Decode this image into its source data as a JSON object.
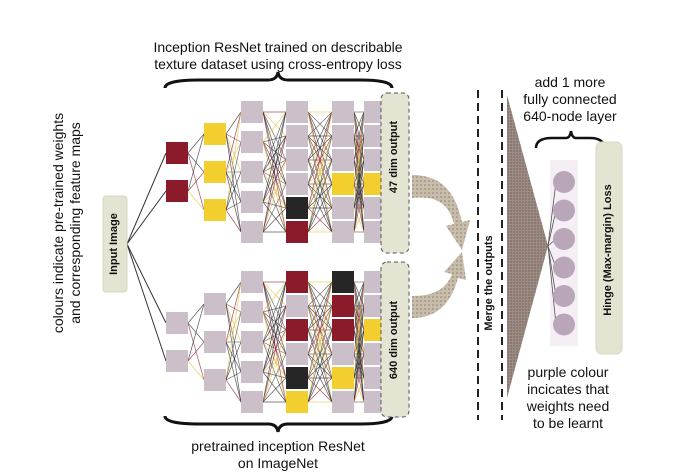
{
  "labels": {
    "top_title_line1": "Inception ResNet trained on describable",
    "top_title_line2": "texture dataset using cross-entropy loss",
    "bottom_title_line1": "pretrained inception ResNet",
    "bottom_title_line2": "on ImageNet",
    "left_note_line1": "colours indicate pre-trained weights",
    "left_note_line2": "and corresponding feature maps",
    "input": "Input Image",
    "output_top": "47 dim output",
    "output_bottom": "640 dim output",
    "merge": "Merge the outputs",
    "add_layer_line1": "add 1 more",
    "add_layer_line2": "fully connected",
    "add_layer_line3": "640-node layer",
    "loss": "Hinge (Max-margin) Loss",
    "purple_note_line1": "purple colour",
    "purple_note_line2": "incicates that",
    "purple_note_line3": "weights need",
    "purple_note_line4": "to be learnt"
  },
  "colors": {
    "maroon": "#8b1a2b",
    "yellow": "#f2cf2e",
    "grey_node": "#cbbfc9",
    "black_node": "#262626",
    "output_box": "#e3e5d2",
    "purple_node": "#b9a7b9",
    "triangle": "#8a7a74",
    "arrow": "#a79a8c"
  },
  "networks": {
    "top": [
      [
        "maroon",
        "maroon"
      ],
      [
        "yellow",
        "yellow",
        "yellow"
      ],
      [
        "grey",
        "grey",
        "grey",
        "grey",
        "grey"
      ],
      [
        "grey",
        "grey",
        "grey",
        "grey",
        "black",
        "maroon"
      ],
      [
        "grey",
        "grey",
        "grey",
        "yellow",
        "grey",
        "grey"
      ],
      [
        "grey",
        "grey",
        "grey",
        "yellow",
        "grey",
        "grey"
      ]
    ],
    "bottom": [
      [
        "grey",
        "grey"
      ],
      [
        "grey",
        "grey",
        "grey"
      ],
      [
        "grey",
        "grey",
        "grey",
        "grey",
        "grey"
      ],
      [
        "maroon",
        "grey",
        "maroon",
        "grey",
        "black",
        "yellow"
      ],
      [
        "black",
        "maroon",
        "maroon",
        "grey",
        "yellow",
        "grey"
      ],
      [
        "grey",
        "grey",
        "yellow",
        "grey",
        "grey",
        "grey"
      ]
    ]
  },
  "fc_layer_nodes": 6
}
